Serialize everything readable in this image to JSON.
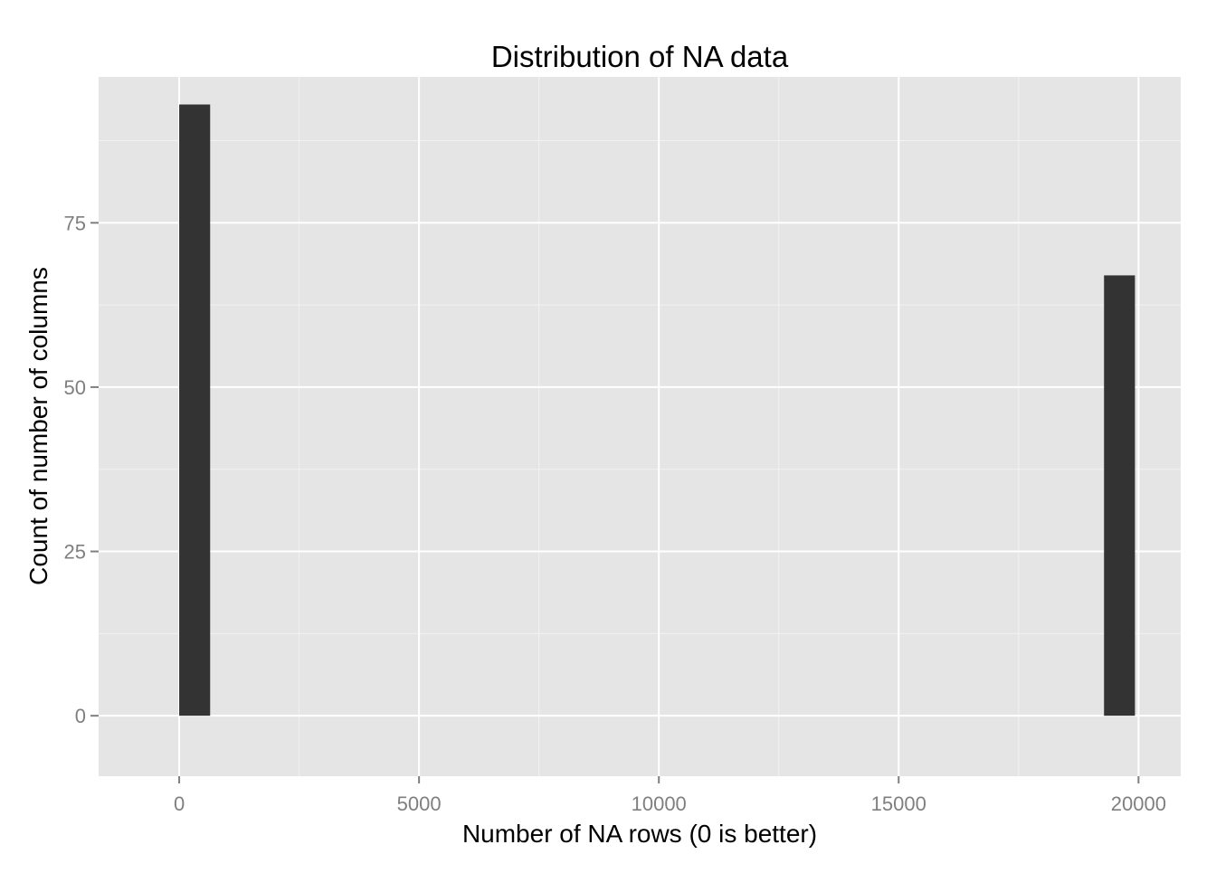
{
  "chart_data": {
    "type": "bar",
    "title": "Distribution of NA data",
    "xlabel": "Number of NA rows (0 is better)",
    "ylabel": "Count of number of columns",
    "xlim": [
      -1680,
      20880
    ],
    "ylim": [
      -9.2,
      97.2
    ],
    "x_ticks": [
      {
        "value": 0,
        "label": "0"
      },
      {
        "value": 5000,
        "label": "5000"
      },
      {
        "value": 10000,
        "label": "10000"
      },
      {
        "value": 15000,
        "label": "15000"
      },
      {
        "value": 20000,
        "label": "20000"
      }
    ],
    "y_ticks": [
      {
        "value": 0,
        "label": "0"
      },
      {
        "value": 25,
        "label": "25"
      },
      {
        "value": 50,
        "label": "50"
      },
      {
        "value": 75,
        "label": "75"
      }
    ],
    "x_minor_breaks": [
      2500,
      7500,
      12500,
      17500
    ],
    "y_minor_breaks": [
      12.5,
      37.5,
      62.5,
      87.5
    ],
    "bars": [
      {
        "x_start": 0,
        "x_end": 645,
        "count": 93
      },
      {
        "x_start": 19281,
        "x_end": 19926,
        "count": 67
      }
    ],
    "grid": true,
    "legend": "none",
    "colors": {
      "panel_background": "#e5e5e5",
      "major_grid": "#ffffff",
      "minor_grid": "#f2f2f2",
      "bar_fill": "#333333",
      "tick_mark": "#7f7f7f"
    }
  }
}
